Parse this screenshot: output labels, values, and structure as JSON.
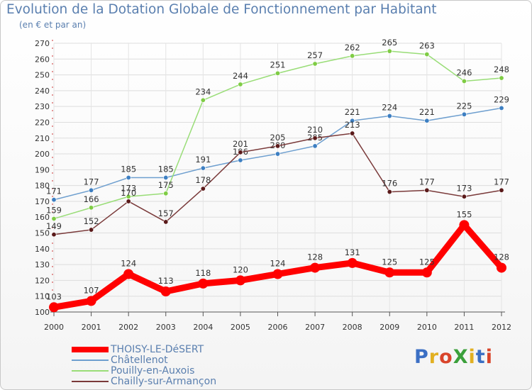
{
  "header": {
    "title": "Evolution de la Dotation Globale de Fonctionnement par Habitant",
    "subtitle": "(en € et par an)"
  },
  "logo": {
    "text": "ProXiti",
    "letter_colors": [
      "#3b6fc4",
      "#e2b021",
      "#d9452b",
      "#3ba03b",
      "#e2b021",
      "#3b6fc4",
      "#d9452b"
    ]
  },
  "chart_data": {
    "type": "line",
    "x": [
      2000,
      2001,
      2002,
      2003,
      2004,
      2005,
      2006,
      2007,
      2008,
      2009,
      2010,
      2011,
      2012
    ],
    "ylim": [
      100,
      270
    ],
    "yticks": [
      100,
      110,
      120,
      130,
      140,
      150,
      160,
      170,
      180,
      190,
      200,
      210,
      220,
      230,
      240,
      250,
      260,
      270
    ],
    "grid": true,
    "legend_position": "bottom-left",
    "series": [
      {
        "name": "Châtellenot",
        "color": "#6e9fcf",
        "marker": "#3d7fc2",
        "values": [
          171,
          177,
          185,
          185,
          191,
          196,
          200,
          205,
          221,
          224,
          221,
          225,
          229
        ]
      },
      {
        "name": "Pouilly-en-Auxois",
        "color": "#99dd77",
        "marker": "#7fcc44",
        "values": [
          159,
          166,
          173,
          175,
          234,
          244,
          251,
          257,
          262,
          265,
          263,
          246,
          248
        ]
      },
      {
        "name": "Chailly-sur-Armançon",
        "color": "#7a3a3a",
        "marker": "#5a1a1a",
        "values": [
          149,
          152,
          170,
          157,
          178,
          201,
          205,
          210,
          213,
          176,
          177,
          173,
          177
        ]
      },
      {
        "name": "THOISY-LE-DéSERT",
        "color": "#ff0000",
        "marker": "#ff0000",
        "bold": true,
        "values": [
          103,
          107,
          124,
          113,
          118,
          120,
          124,
          128,
          131,
          125,
          125,
          155,
          128
        ]
      }
    ],
    "legend_order": [
      "THOISY-LE-DéSERT",
      "Châtellenot",
      "Pouilly-en-Auxois",
      "Chailly-sur-Armançon"
    ]
  }
}
